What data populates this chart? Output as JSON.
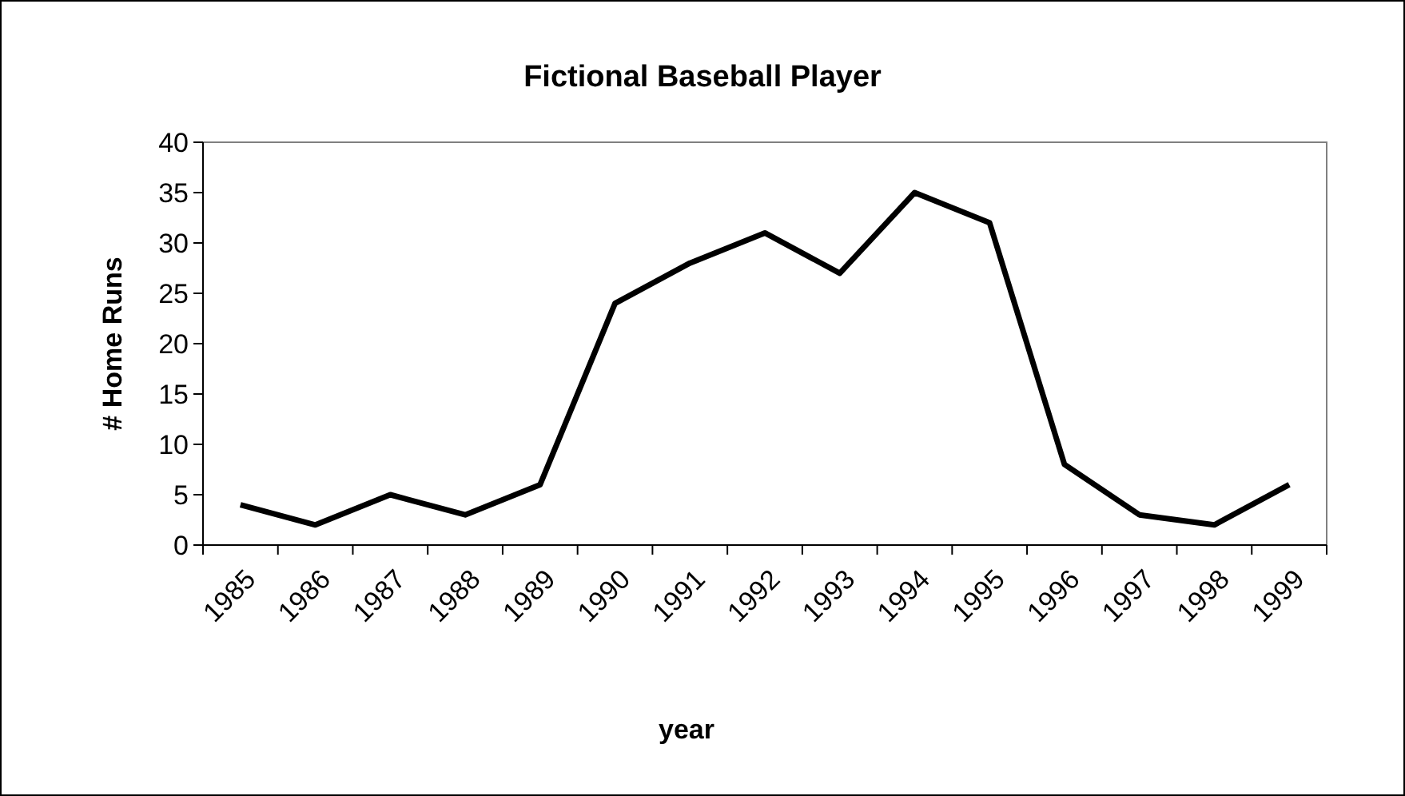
{
  "chart_data": {
    "type": "line",
    "title": "Fictional Baseball Player",
    "xlabel": "year",
    "ylabel": "# Home Runs",
    "categories": [
      "1985",
      "1986",
      "1987",
      "1988",
      "1989",
      "1990",
      "1991",
      "1992",
      "1993",
      "1994",
      "1995",
      "1996",
      "1997",
      "1998",
      "1999"
    ],
    "series": [
      {
        "color": "#000000",
        "values": [
          4,
          2,
          5,
          3,
          6,
          24,
          28,
          31,
          27,
          35,
          32,
          8,
          3,
          2,
          6
        ]
      }
    ],
    "ylim": [
      0,
      40
    ],
    "yticks": [
      0,
      5,
      10,
      15,
      20,
      25,
      30,
      35,
      40
    ],
    "grid": false,
    "marker": "none",
    "line_style": "solid"
  }
}
